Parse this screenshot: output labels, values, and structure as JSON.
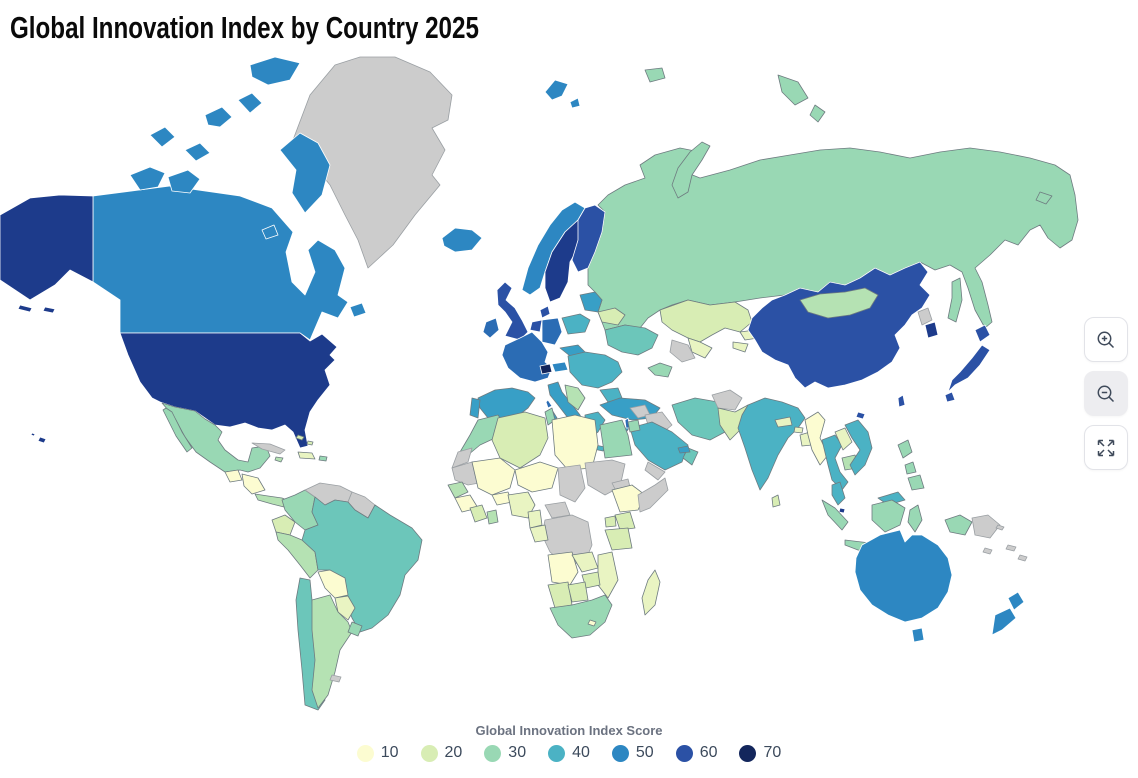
{
  "title": "Global Innovation Index by Country 2025",
  "controls": {
    "zoom_in_icon": "magnifier-plus",
    "zoom_out_icon": "magnifier-minus",
    "fullscreen_icon": "expand-arrows"
  },
  "chart_data": {
    "type": "choropleth",
    "title": "Global Innovation Index by Country 2025",
    "legend": {
      "title": "Global Innovation Index Score",
      "bins": [
        10,
        20,
        30,
        40,
        50,
        60,
        70
      ],
      "position": "bottom-center",
      "no_data_color": "#cccccc",
      "colors": {
        "10": "#fcfcd1",
        "15": "#e9f4c2",
        "20": "#d8edb4",
        "25": "#b5e2b3",
        "30": "#99d8b4",
        "35": "#6cc6ba",
        "40": "#4bb2c4",
        "45": "#389fc6",
        "50": "#2d87c2",
        "55": "#2b6cb4",
        "60": "#2b51a5",
        "65": "#1d3b8b",
        "70": "#13265c"
      }
    },
    "regions": {
      "greenland": null,
      "canada": 50,
      "united-states": 65,
      "mexico": 30,
      "guatemala": 10,
      "honduras-nicaragua": 10,
      "costa-rica-panama": 25,
      "cuba": null,
      "hispaniola": 15,
      "jamaica": 25,
      "puerto-rico": 30,
      "bahamas": 20,
      "venezuela": null,
      "guyanas": null,
      "colombia": 30,
      "ecuador": 20,
      "peru": 25,
      "brazil": 35,
      "bolivia": 10,
      "paraguay": 15,
      "chile": 35,
      "argentina": 25,
      "uruguay": 30,
      "falkland-islands": null,
      "iceland": 50,
      "united-kingdom": 60,
      "ireland": 55,
      "norway": 50,
      "sweden": 65,
      "finland": 60,
      "denmark": 60,
      "baltics": 45,
      "belarus": 20,
      "poland": 40,
      "germany": 55,
      "benelux": 60,
      "france": 55,
      "switzerland": 70,
      "austria": 50,
      "czech-slovakia": 45,
      "spain": 45,
      "portugal": 45,
      "italy": 45,
      "hungary-romania": 40,
      "balkans": 25,
      "bulgaria": 40,
      "greece": 40,
      "ukraine": 35,
      "russia": 30,
      "kazakhstan": 20,
      "uzbekistan": 15,
      "turkmenistan": null,
      "kyrgyzstan": 15,
      "tajikistan": 15,
      "caucasus": 30,
      "turkey": 45,
      "cyprus": 45,
      "syria": null,
      "iraq": null,
      "iran": 35,
      "afghanistan": null,
      "pakistan": 20,
      "saudi-arabia": 40,
      "yemen": null,
      "oman": 35,
      "united-arab-emirates": 45,
      "israel": 55,
      "jordan": 30,
      "egypt": 30,
      "morocco": 30,
      "western-sahara": null,
      "algeria": 20,
      "tunisia": 30,
      "libya": 10,
      "mauritania": null,
      "mali": 10,
      "niger": 10,
      "chad": null,
      "sudan": null,
      "senegal": 25,
      "guinea": 10,
      "ivory-coast": 20,
      "ghana": 25,
      "burkina-faso": 10,
      "nigeria": 15,
      "cameroon": 15,
      "eritrea": null,
      "ethiopia": 10,
      "somalia": null,
      "kenya": 20,
      "uganda": 20,
      "tanzania": 20,
      "central-african-republic": null,
      "dr-congo": null,
      "gabon-congo": 15,
      "angola": 10,
      "zambia": 15,
      "mozambique": 15,
      "zimbabwe": 20,
      "namibia": 20,
      "botswana": 20,
      "south-africa": 30,
      "lesotho": 10,
      "madagascar": 15,
      "india": 40,
      "sri-lanka": 20,
      "nepal": 15,
      "bhutan": 15,
      "bangladesh": 15,
      "china": 60,
      "mongolia": 25,
      "taiwan": 60,
      "north-korea": null,
      "south-korea": 65,
      "japan": 60,
      "myanmar": 10,
      "thailand": 40,
      "laos": 15,
      "cambodia": 25,
      "vietnam": 40,
      "malaysia": 40,
      "singapore": 65,
      "indonesia": 30,
      "papua-new-guinea": null,
      "philippines": 30,
      "australia": 50,
      "new-zealand": 50,
      "pacific-islands": null
    }
  }
}
